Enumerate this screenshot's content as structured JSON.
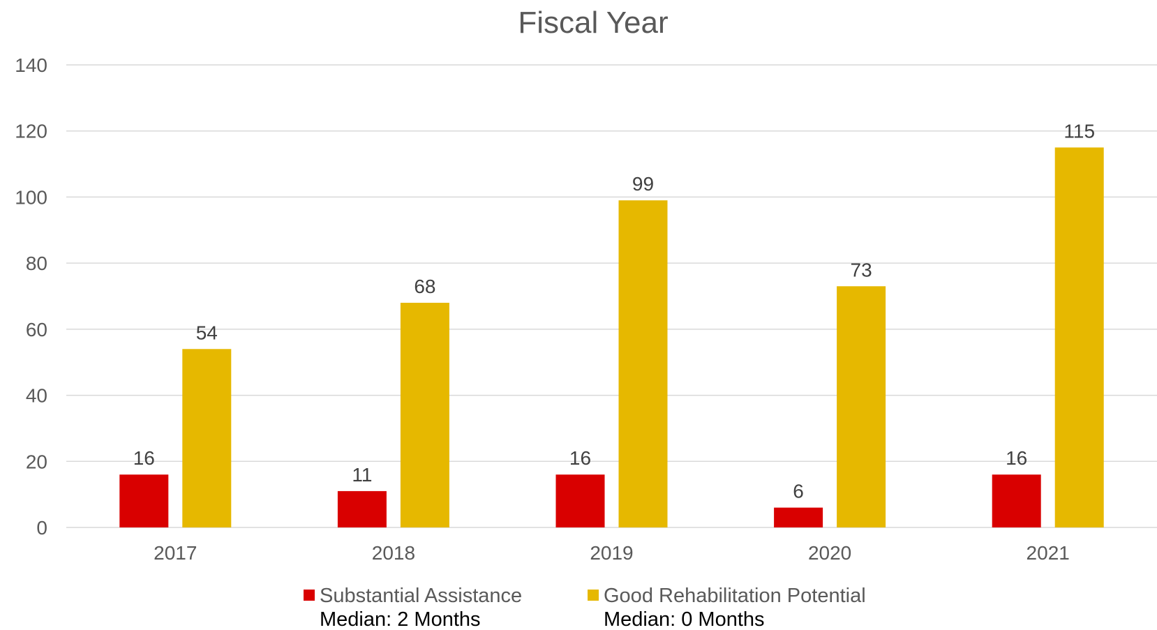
{
  "chart_data": {
    "type": "bar",
    "title": "Fiscal Year",
    "categories": [
      "2017",
      "2018",
      "2019",
      "2020",
      "2021"
    ],
    "series": [
      {
        "name": "Substantial Assistance",
        "subtitle": "Median: 2 Months",
        "color": "#d90000",
        "values": [
          16,
          11,
          16,
          6,
          16
        ]
      },
      {
        "name": "Good Rehabilitation Potential",
        "subtitle": "Median: 0 Months",
        "color": "#e6b800",
        "values": [
          54,
          68,
          99,
          73,
          115
        ]
      }
    ],
    "ylim": [
      0,
      140
    ],
    "yticks": [
      0,
      20,
      40,
      60,
      80,
      100,
      120,
      140
    ],
    "grid": true,
    "legend_position": "bottom",
    "data_labels": true
  }
}
